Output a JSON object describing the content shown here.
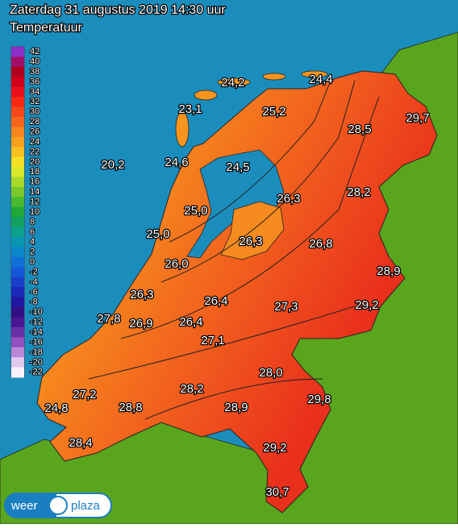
{
  "header": {
    "title": "Zaterdag 31 augustus 2019 14:30 uur",
    "subtitle": "Temperatuur"
  },
  "legend": {
    "ticks": [
      42,
      40,
      38,
      36,
      34,
      32,
      30,
      28,
      26,
      24,
      22,
      20,
      18,
      16,
      14,
      12,
      10,
      8,
      6,
      4,
      2,
      0,
      -2,
      -4,
      -6,
      -8,
      -10,
      -12,
      -14,
      -16,
      -18,
      -20,
      -22
    ],
    "colors": [
      "#8b2fc9",
      "#a0106a",
      "#b00020",
      "#d0001c",
      "#e8101a",
      "#f42a14",
      "#f5481a",
      "#f5661c",
      "#f7841e",
      "#f7a01e",
      "#f8c020",
      "#f5e026",
      "#d8e82a",
      "#a8d82c",
      "#78c82a",
      "#48b830",
      "#20a838",
      "#10a060",
      "#0aa08a",
      "#0896b0",
      "#0c86cc",
      "#1070d8",
      "#1458d8",
      "#1840c8",
      "#1a28b8",
      "#2018a0",
      "#301080",
      "#481890",
      "#6a30a8",
      "#9050c0",
      "#b888d8",
      "#e0c8ee",
      "#f8f0fa"
    ]
  },
  "stations": [
    "24,2",
    "24,4",
    "23,1",
    "25,2",
    "28,5",
    "29,7",
    "20,2",
    "24,6",
    "24,5",
    "26,3",
    "28,2",
    "25,0",
    "25,0",
    "26,3",
    "26,8",
    "26,0",
    "28,9",
    "26,3",
    "26,4",
    "27,3",
    "29,2",
    "27,8",
    "26,9",
    "26,4",
    "27,1",
    "28,0",
    "27,2",
    "28,2",
    "29,8",
    "24,8",
    "28,8",
    "28,9",
    "28,4",
    "29,2",
    "30,7"
  ],
  "logo": {
    "left": "weer",
    "right": "plaza"
  }
}
